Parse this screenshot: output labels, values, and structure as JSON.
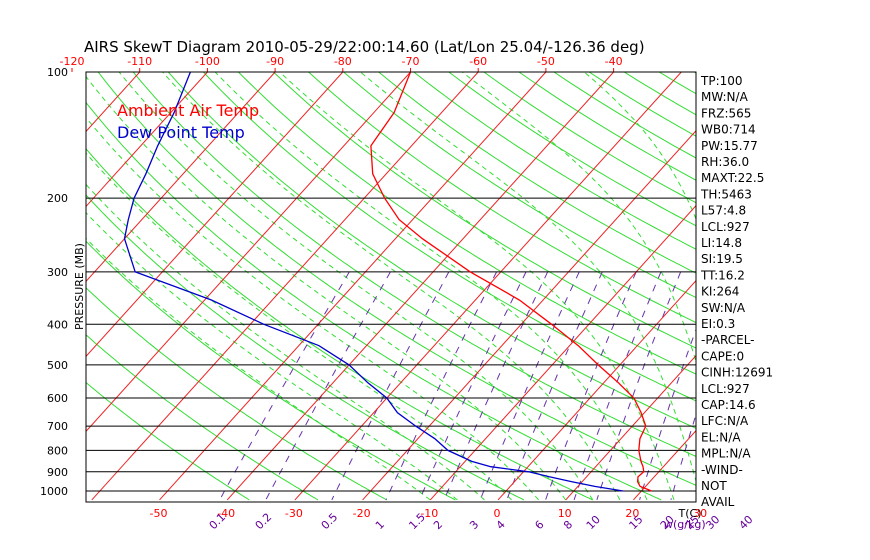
{
  "chart_data": {
    "type": "line",
    "title": "AIRS SkewT Diagram 2010-05-29/22:00:14.60 (Lat/Lon 25.04/-126.36 deg)",
    "ylabel": "PRESSURE (MB)",
    "xlabel_temp": "T(C)",
    "xlabel_mix": "w(g/kg)",
    "legend": [
      "Ambient Air Temp",
      "Dew Point Temp"
    ],
    "pressure_ticks": [
      "100",
      "200",
      "300",
      "400",
      "500",
      "600",
      "700",
      "800",
      "900",
      "1000"
    ],
    "top_temp_ticks": [
      "-120",
      "-110",
      "-100",
      "-90",
      "-80",
      "-70",
      "-60",
      "-50",
      "-40"
    ],
    "bottom_temp_ticks": [
      "-50",
      "-40",
      "-30",
      "-20",
      "-10",
      "0",
      "10",
      "20",
      "30"
    ],
    "mixing_ratio_ticks": [
      "0.1",
      "0.2",
      "0.5",
      "1",
      "1.5",
      "2",
      "3",
      "4",
      "6",
      "8",
      "10",
      "15",
      "20",
      "25",
      "30",
      "40"
    ],
    "series": [
      {
        "name": "Ambient Air Temp",
        "color": "#ff0000",
        "pressure": [
          1000,
          975,
          950,
          925,
          900,
          875,
          850,
          800,
          750,
          700,
          650,
          600,
          550,
          500,
          450,
          400,
          350,
          300,
          250,
          225,
          200,
          175,
          150,
          125,
          100
        ],
        "temperature": [
          21.5,
          19.2,
          18.2,
          17.6,
          17.8,
          17.0,
          16.0,
          14.2,
          12.8,
          12.0,
          9.5,
          6.5,
          2.0,
          -3.2,
          -8.7,
          -15.5,
          -23.5,
          -34.5,
          -46.0,
          -52.0,
          -57.0,
          -62.0,
          -66.0,
          -67.0,
          -70.0
        ]
      },
      {
        "name": "Dew Point Temp",
        "color": "#0000cc",
        "pressure": [
          1000,
          975,
          950,
          925,
          900,
          875,
          850,
          800,
          750,
          700,
          650,
          600,
          550,
          500,
          450,
          400,
          350,
          300,
          250,
          225,
          200,
          175,
          150,
          125,
          100
        ],
        "temperature": [
          17.3,
          12.5,
          8.5,
          4.5,
          0.8,
          -5.5,
          -9.0,
          -14.0,
          -17.5,
          -22.0,
          -26.5,
          -30.0,
          -35.0,
          -40.0,
          -47.0,
          -58.0,
          -69.0,
          -84.0,
          -90.0,
          -92.0,
          -94.0,
          -95.5,
          -97.5,
          -99.5,
          -102.5
        ]
      }
    ],
    "indices": [
      "TP:100",
      "MW:N/A",
      "FRZ:565",
      "WB0:714",
      "PW:15.77",
      "RH:36.0",
      "MAXT:22.5",
      "TH:5463",
      "L57:4.8",
      "LCL:927",
      "LI:14.8",
      "SI:19.5",
      "TT:16.2",
      "KI:264",
      "SW:N/A",
      "EI:0.3",
      "-PARCEL-",
      "CAPE:0",
      "CINH:12691",
      "LCL:927",
      "CAP:14.6",
      "LFC:N/A",
      "EL:N/A",
      "MPL:N/A",
      "-WIND-",
      "NOT",
      "AVAIL"
    ]
  }
}
